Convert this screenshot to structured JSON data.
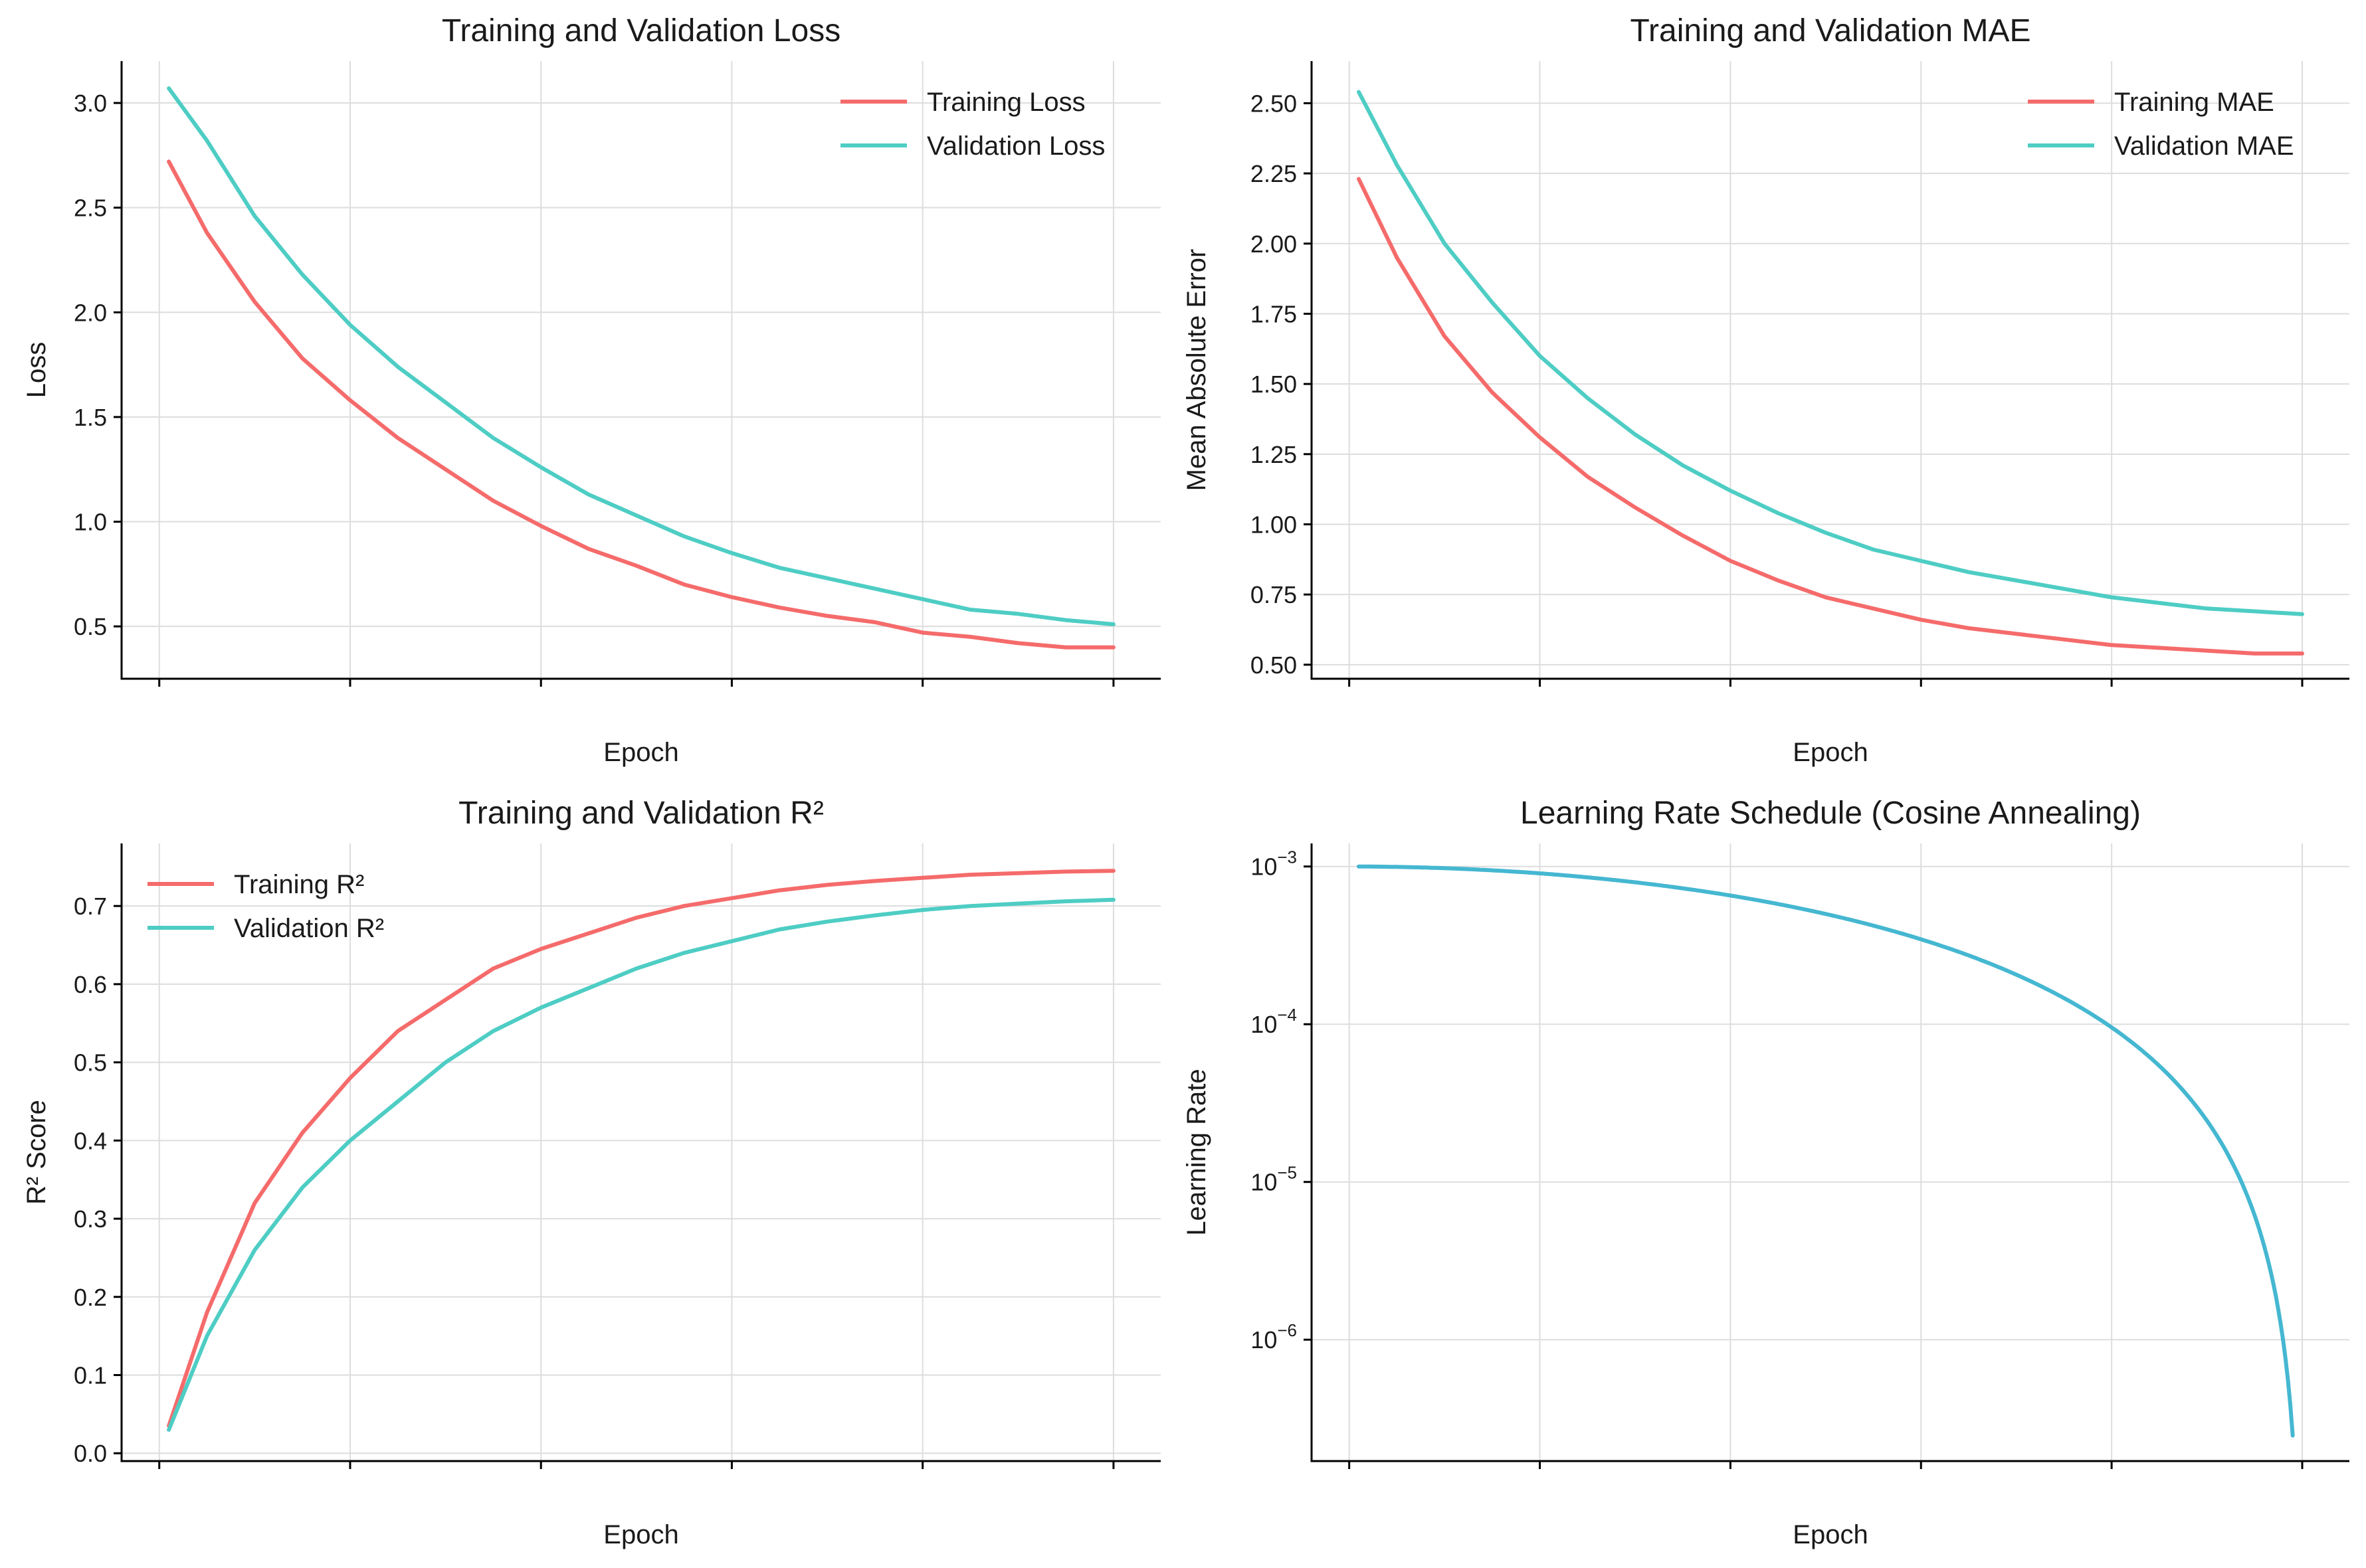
{
  "chart_data": [
    {
      "type": "line",
      "title": "Training and Validation Loss",
      "xlabel": "Epoch",
      "ylabel": "Loss",
      "xlim": [
        -3.95,
        104.95
      ],
      "ylim": [
        0.25,
        3.2
      ],
      "xticks": [
        0,
        20,
        40,
        60,
        80,
        100
      ],
      "yticks": [
        0.5,
        1.0,
        1.5,
        2.0,
        2.5,
        3.0
      ],
      "ytick_labels": [
        "0.5",
        "1.0",
        "1.5",
        "2.0",
        "2.5",
        "3.0"
      ],
      "grid": true,
      "legend_position": "top-right",
      "x": [
        1,
        5,
        10,
        15,
        20,
        25,
        30,
        35,
        40,
        45,
        50,
        55,
        60,
        65,
        70,
        75,
        80,
        85,
        90,
        95,
        100
      ],
      "series": [
        {
          "name": "Training Loss",
          "color": "#f56b6b",
          "values": [
            2.72,
            2.38,
            2.05,
            1.78,
            1.58,
            1.4,
            1.25,
            1.1,
            0.98,
            0.87,
            0.79,
            0.7,
            0.64,
            0.59,
            0.55,
            0.52,
            0.47,
            0.45,
            0.42,
            0.4,
            0.4
          ]
        },
        {
          "name": "Validation Loss",
          "color": "#4ecdc4",
          "values": [
            3.07,
            2.82,
            2.46,
            2.18,
            1.94,
            1.74,
            1.57,
            1.4,
            1.26,
            1.13,
            1.03,
            0.93,
            0.85,
            0.78,
            0.73,
            0.68,
            0.63,
            0.58,
            0.56,
            0.53,
            0.51
          ]
        }
      ]
    },
    {
      "type": "line",
      "title": "Training and Validation MAE",
      "xlabel": "Epoch",
      "ylabel": "Mean Absolute Error",
      "xlim": [
        -3.95,
        104.95
      ],
      "ylim": [
        0.45,
        2.65
      ],
      "xticks": [
        0,
        20,
        40,
        60,
        80,
        100
      ],
      "yticks": [
        0.5,
        0.75,
        1.0,
        1.25,
        1.5,
        1.75,
        2.0,
        2.25,
        2.5
      ],
      "ytick_labels": [
        "0.50",
        "0.75",
        "1.00",
        "1.25",
        "1.50",
        "1.75",
        "2.00",
        "2.25",
        "2.50"
      ],
      "grid": true,
      "legend_position": "top-right",
      "x": [
        1,
        5,
        10,
        15,
        20,
        25,
        30,
        35,
        40,
        45,
        50,
        55,
        60,
        65,
        70,
        75,
        80,
        85,
        90,
        95,
        100
      ],
      "series": [
        {
          "name": "Training MAE",
          "color": "#f56b6b",
          "values": [
            2.23,
            1.95,
            1.67,
            1.47,
            1.31,
            1.17,
            1.06,
            0.96,
            0.87,
            0.8,
            0.74,
            0.7,
            0.66,
            0.63,
            0.61,
            0.59,
            0.57,
            0.56,
            0.55,
            0.54,
            0.54
          ]
        },
        {
          "name": "Validation MAE",
          "color": "#4ecdc4",
          "values": [
            2.54,
            2.28,
            2.0,
            1.79,
            1.6,
            1.45,
            1.32,
            1.21,
            1.12,
            1.04,
            0.97,
            0.91,
            0.87,
            0.83,
            0.8,
            0.77,
            0.74,
            0.72,
            0.7,
            0.69,
            0.68
          ]
        }
      ]
    },
    {
      "type": "line",
      "title": "Training and Validation R²",
      "xlabel": "Epoch",
      "ylabel": "R² Score",
      "xlim": [
        -3.95,
        104.95
      ],
      "ylim": [
        -0.01,
        0.78
      ],
      "xticks": [
        0,
        20,
        40,
        60,
        80,
        100
      ],
      "yticks": [
        0.0,
        0.1,
        0.2,
        0.3,
        0.4,
        0.5,
        0.6,
        0.7
      ],
      "ytick_labels": [
        "0.0",
        "0.1",
        "0.2",
        "0.3",
        "0.4",
        "0.5",
        "0.6",
        "0.7"
      ],
      "grid": true,
      "legend_position": "top-left",
      "x": [
        1,
        5,
        10,
        15,
        20,
        25,
        30,
        35,
        40,
        45,
        50,
        55,
        60,
        65,
        70,
        75,
        80,
        85,
        90,
        95,
        100
      ],
      "series": [
        {
          "name": "Training R²",
          "color": "#f56b6b",
          "values": [
            0.035,
            0.18,
            0.32,
            0.41,
            0.48,
            0.54,
            0.58,
            0.62,
            0.645,
            0.665,
            0.685,
            0.7,
            0.71,
            0.72,
            0.727,
            0.732,
            0.736,
            0.74,
            0.742,
            0.744,
            0.745
          ]
        },
        {
          "name": "Validation R²",
          "color": "#4ecdc4",
          "values": [
            0.03,
            0.15,
            0.26,
            0.34,
            0.4,
            0.45,
            0.5,
            0.54,
            0.57,
            0.595,
            0.62,
            0.64,
            0.655,
            0.67,
            0.68,
            0.688,
            0.695,
            0.7,
            0.703,
            0.706,
            0.708
          ]
        }
      ]
    },
    {
      "type": "line",
      "title": "Learning Rate Schedule (Cosine Annealing)",
      "xlabel": "Epoch",
      "ylabel": "Learning Rate",
      "xlim": [
        -3.95,
        104.95
      ],
      "ylim": [
        1.7e-07,
        0.0014
      ],
      "yscale": "log",
      "xticks": [
        0,
        20,
        40,
        60,
        80,
        100
      ],
      "yticks": [
        1e-06,
        1e-05,
        0.0001,
        0.001
      ],
      "ytick_labels": [
        {
          "base": "10",
          "exp": "−6"
        },
        {
          "base": "10",
          "exp": "−5"
        },
        {
          "base": "10",
          "exp": "−4"
        },
        {
          "base": "10",
          "exp": "−3"
        }
      ],
      "grid": true,
      "schedule": {
        "initial_lr": 0.001,
        "total_epochs": 100,
        "first_epoch": 1,
        "last_epoch": 99
      },
      "series": [
        {
          "color": "#45b7d1"
        }
      ]
    }
  ]
}
